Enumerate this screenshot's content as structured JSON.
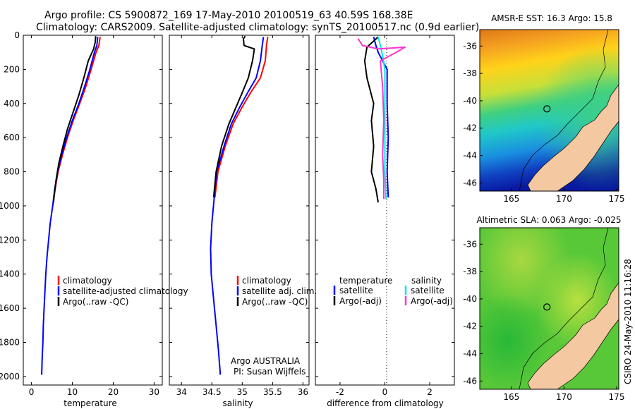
{
  "header": {
    "line1": "Argo profile: CS 5900872_169 17-May-2010 20100519_63 40.59S 168.38E",
    "line2": "Climatology: CARS2009. Satellite-adjusted climatology: synTS_20100517.nc (0.9d earlier)"
  },
  "colors": {
    "climatology": "#ff0000",
    "satellite": "#0000ff",
    "argo": "#000000",
    "sat_salinity": "#00e5ee",
    "argo_adj_sal": "#ff33cc"
  },
  "chart_data": [
    {
      "type": "line",
      "panel": "temperature",
      "xlabel": "temperature",
      "ylabel": "",
      "xlim": [
        -2,
        32
      ],
      "ylim": [
        2050,
        0
      ],
      "xticks": [
        0,
        10,
        20,
        30
      ],
      "yticks": [
        0,
        200,
        400,
        600,
        800,
        1000,
        1200,
        1400,
        1600,
        1800,
        2000
      ],
      "legend": [
        "climatology",
        "satellite-adjusted climatology",
        "Argo(..raw -QC)"
      ],
      "series": [
        {
          "name": "climatology",
          "points": [
            [
              16.8,
              10
            ],
            [
              16.5,
              60
            ],
            [
              15.8,
              100
            ],
            [
              14.6,
              200
            ],
            [
              13.3,
              300
            ],
            [
              11.8,
              400
            ],
            [
              10.2,
              500
            ],
            [
              8.8,
              600
            ],
            [
              7.6,
              700
            ],
            [
              6.5,
              800
            ],
            [
              5.8,
              900
            ],
            [
              5.2,
              1000
            ]
          ]
        },
        {
          "name": "satellite-adjusted climatology",
          "points": [
            [
              16.2,
              10
            ],
            [
              16.0,
              60
            ],
            [
              15.4,
              100
            ],
            [
              14.3,
              200
            ],
            [
              13.0,
              300
            ],
            [
              11.6,
              400
            ],
            [
              10.0,
              500
            ],
            [
              8.6,
              600
            ],
            [
              7.4,
              700
            ],
            [
              6.4,
              800
            ],
            [
              5.7,
              900
            ],
            [
              5.2,
              1000
            ],
            [
              4.6,
              1100
            ],
            [
              4.2,
              1200
            ],
            [
              3.8,
              1300
            ],
            [
              3.5,
              1400
            ],
            [
              3.3,
              1500
            ],
            [
              3.1,
              1600
            ],
            [
              2.9,
              1700
            ],
            [
              2.8,
              1800
            ],
            [
              2.6,
              1900
            ],
            [
              2.5,
              1990
            ]
          ]
        },
        {
          "name": "Argo(..raw -QC)",
          "points": [
            [
              15.7,
              5
            ],
            [
              15.6,
              40
            ],
            [
              15.2,
              80
            ],
            [
              13.9,
              150
            ],
            [
              12.8,
              250
            ],
            [
              11.6,
              350
            ],
            [
              10.2,
              450
            ],
            [
              8.8,
              550
            ],
            [
              7.7,
              650
            ],
            [
              6.7,
              750
            ],
            [
              6.0,
              850
            ],
            [
              5.5,
              950
            ],
            [
              5.4,
              980
            ]
          ]
        }
      ]
    },
    {
      "type": "line",
      "panel": "salinity",
      "xlabel": "salinity",
      "ylabel": "",
      "xlim": [
        33.8,
        36.1
      ],
      "ylim": [
        2050,
        0
      ],
      "xticks": [
        34,
        34.5,
        35,
        35.5,
        36
      ],
      "legend": [
        "climatology",
        "satellite adj. clim.",
        "Argo(..raw -QC)"
      ],
      "annotation": [
        "Argo AUSTRALIA",
        "PI: Susan Wijffels"
      ],
      "series": [
        {
          "name": "climatology",
          "points": [
            [
              35.42,
              10
            ],
            [
              35.4,
              60
            ],
            [
              35.38,
              150
            ],
            [
              35.3,
              250
            ],
            [
              35.15,
              330
            ],
            [
              35.0,
              420
            ],
            [
              34.85,
              520
            ],
            [
              34.72,
              650
            ],
            [
              34.6,
              800
            ],
            [
              34.55,
              950
            ]
          ]
        },
        {
          "name": "satellite adj. clim.",
          "points": [
            [
              35.35,
              10
            ],
            [
              35.33,
              60
            ],
            [
              35.3,
              150
            ],
            [
              35.23,
              250
            ],
            [
              35.1,
              330
            ],
            [
              34.96,
              420
            ],
            [
              34.82,
              520
            ],
            [
              34.7,
              650
            ],
            [
              34.58,
              800
            ],
            [
              34.54,
              950
            ],
            [
              34.5,
              1100
            ],
            [
              34.48,
              1250
            ],
            [
              34.49,
              1400
            ],
            [
              34.53,
              1550
            ],
            [
              34.57,
              1700
            ],
            [
              34.61,
              1850
            ],
            [
              34.64,
              1990
            ]
          ]
        },
        {
          "name": "Argo(..raw -QC)",
          "points": [
            [
              35.05,
              5
            ],
            [
              35.02,
              20
            ],
            [
              35.03,
              60
            ],
            [
              35.2,
              80
            ],
            [
              35.17,
              150
            ],
            [
              35.1,
              250
            ],
            [
              35.02,
              320
            ],
            [
              34.9,
              420
            ],
            [
              34.78,
              520
            ],
            [
              34.66,
              650
            ],
            [
              34.57,
              800
            ],
            [
              34.53,
              950
            ]
          ]
        }
      ]
    },
    {
      "type": "line",
      "panel": "difference",
      "xlabel": "difference from climatology",
      "ylabel": "",
      "xlim": [
        -3.1,
        3.1
      ],
      "ylim": [
        2050,
        0
      ],
      "xticks": [
        -2,
        0,
        2
      ],
      "legend_temperature": [
        "temperature",
        "satellite",
        "Argo(-adj)"
      ],
      "legend_salinity": [
        "salinity",
        "satellite",
        "Argo(-adj)"
      ],
      "series": [
        {
          "name": "temperature satellite",
          "points": [
            [
              -0.5,
              10
            ],
            [
              -0.4,
              60
            ],
            [
              -0.3,
              100
            ],
            [
              0.1,
              200
            ],
            [
              0.1,
              400
            ],
            [
              0.15,
              600
            ],
            [
              0.1,
              800
            ],
            [
              0.15,
              950
            ]
          ]
        },
        {
          "name": "temperature Argo(-adj)",
          "points": [
            [
              -0.3,
              10
            ],
            [
              -0.8,
              70
            ],
            [
              -0.9,
              150
            ],
            [
              -0.8,
              250
            ],
            [
              -0.5,
              400
            ],
            [
              -0.6,
              500
            ],
            [
              -0.5,
              650
            ],
            [
              -0.6,
              800
            ],
            [
              -0.4,
              900
            ],
            [
              -0.3,
              980
            ]
          ]
        },
        {
          "name": "salinity satellite",
          "points": [
            [
              -0.3,
              10
            ],
            [
              -0.2,
              60
            ],
            [
              -0.1,
              120
            ],
            [
              0.0,
              200
            ],
            [
              0.0,
              400
            ],
            [
              0.0,
              600
            ],
            [
              0.0,
              800
            ],
            [
              0.05,
              960
            ]
          ]
        },
        {
          "name": "salinity Argo(-adj)",
          "points": [
            [
              -1.2,
              20
            ],
            [
              -1.0,
              60
            ],
            [
              -0.3,
              80
            ],
            [
              0.9,
              70
            ],
            [
              0.5,
              100
            ],
            [
              -0.2,
              150
            ],
            [
              -0.1,
              300
            ],
            [
              -0.05,
              500
            ],
            [
              -0.1,
              700
            ],
            [
              -0.05,
              850
            ],
            [
              -0.05,
              960
            ]
          ]
        }
      ]
    },
    {
      "type": "heatmap",
      "panel": "AMSR-E SST",
      "title": "AMSR-E SST: 16.3 Argo: 15.8",
      "xlim": [
        162,
        175.2
      ],
      "ylim": [
        -46.6,
        -34.8
      ],
      "xticks": [
        165,
        170,
        175
      ],
      "yticks": [
        -36,
        -38,
        -40,
        -42,
        -44,
        -46
      ],
      "marker": [
        168.38,
        -40.59
      ]
    },
    {
      "type": "heatmap",
      "panel": "Altimetric SLA",
      "title": "Altimetric SLA: 0.063 Argo: -0.025",
      "xlim": [
        162,
        175.2
      ],
      "ylim": [
        -46.6,
        -34.8
      ],
      "xticks": [
        165,
        170,
        175
      ],
      "yticks": [
        -36,
        -38,
        -40,
        -42,
        -44,
        -46
      ],
      "marker": [
        168.38,
        -40.59
      ]
    }
  ],
  "side_label": "CSIRO 24-May-2010 11:16:28"
}
